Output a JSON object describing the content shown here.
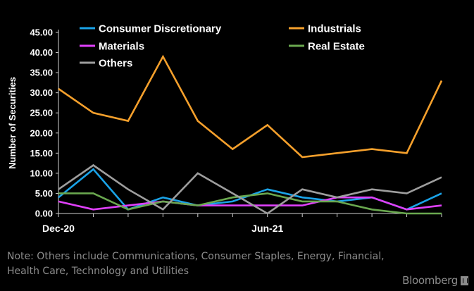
{
  "chart_data": {
    "type": "line",
    "title": "",
    "xlabel": "",
    "ylabel": "Number of Securities",
    "ylim": [
      0,
      45
    ],
    "yticks": [
      "45.00",
      "40.00",
      "35.00",
      "30.00",
      "25.00",
      "20.00",
      "15.00",
      "10.00",
      "5.00",
      "0.00"
    ],
    "x_tick_labels": [
      {
        "index": 0,
        "label": "Dec-20"
      },
      {
        "index": 6,
        "label": "Jun-21"
      }
    ],
    "x_points": 12,
    "grid": "none",
    "legend_position": "top",
    "series": [
      {
        "name": "Consumer Discretionary",
        "color": "#1aa3e8",
        "values": [
          4,
          11,
          1,
          4,
          2,
          3,
          6,
          4,
          3,
          4,
          1,
          5
        ]
      },
      {
        "name": "Industrials",
        "color": "#f5a02c",
        "values": [
          31,
          25,
          23,
          39,
          23,
          16,
          22,
          14,
          15,
          16,
          15,
          33
        ]
      },
      {
        "name": "Materials",
        "color": "#e040fb",
        "values": [
          3,
          1,
          2,
          3,
          2,
          2,
          2,
          2,
          4,
          4,
          1,
          2
        ]
      },
      {
        "name": "Real Estate",
        "color": "#6aa84f",
        "values": [
          5,
          5,
          1,
          3,
          2,
          4,
          5,
          3,
          3,
          1,
          0,
          0
        ]
      },
      {
        "name": "Others",
        "color": "#9e9e9e",
        "values": [
          6,
          12,
          6,
          1,
          10,
          5,
          0,
          6,
          4,
          6,
          5,
          9
        ]
      }
    ]
  },
  "note": "Note: Others include Communications, Consumer Staples, Energy, Financial,\n        Health Care, Technology and Utilities",
  "brand": "Bloomberg"
}
